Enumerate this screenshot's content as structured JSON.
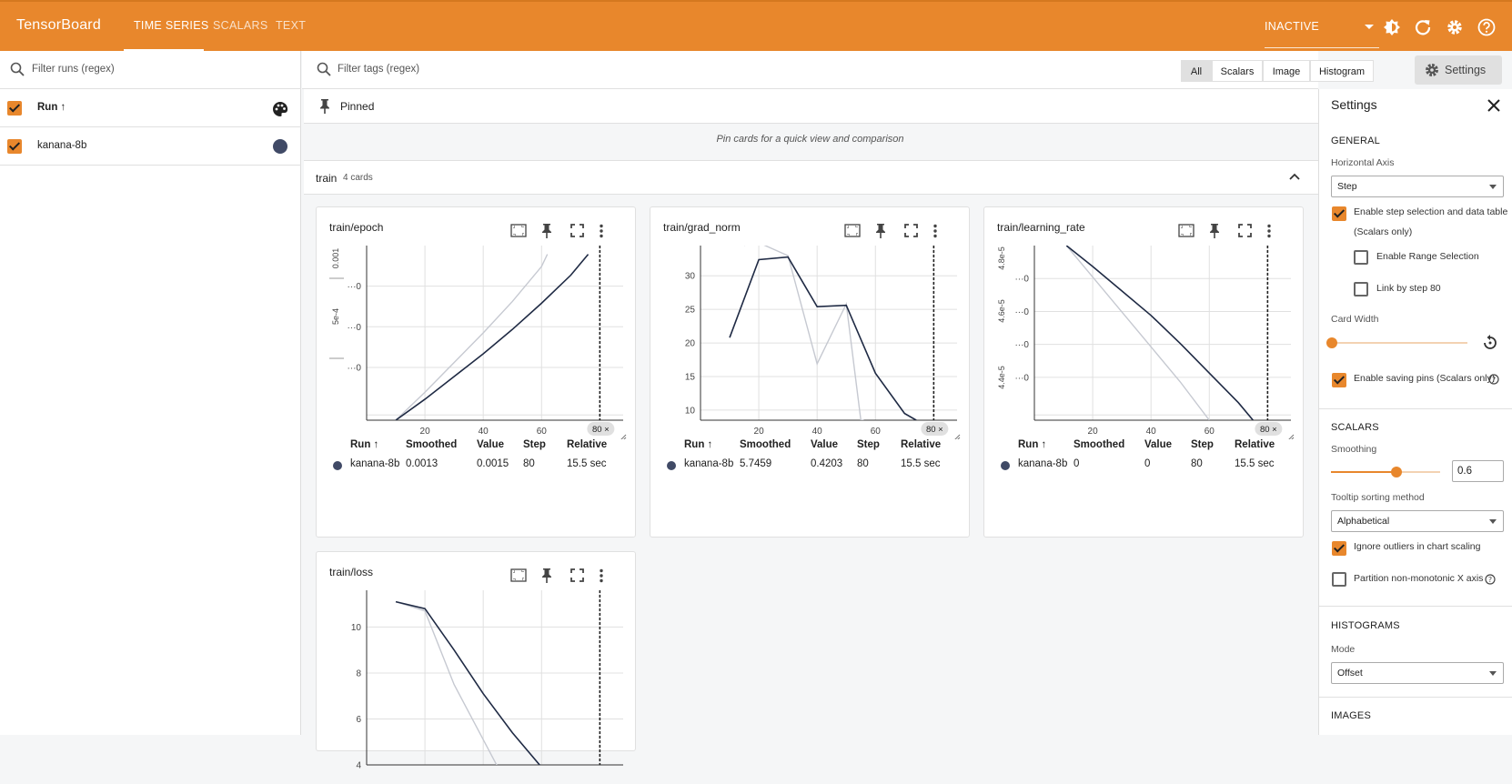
{
  "app": {
    "title": "TensorBoard"
  },
  "tabs": [
    {
      "label": "TIME SERIES"
    },
    {
      "label": "SCALARS"
    },
    {
      "label": "TEXT"
    }
  ],
  "header": {
    "status_select": "INACTIVE"
  },
  "icons": [
    "brightness-icon",
    "refresh-icon",
    "gear-icon",
    "help-icon",
    "search-icon",
    "palette-icon",
    "pin-icon",
    "close-icon",
    "chevron-up-icon",
    "fit-icon",
    "fullscreen-icon",
    "more-vert-icon",
    "reset-icon"
  ],
  "colors": {
    "accent": "#e8872c",
    "run": "#404a66",
    "smoothed_line": "#1f2a44",
    "raw_line": "#c6c9d1"
  },
  "runs_panel": {
    "filter_placeholder": "Filter runs (regex)",
    "header": "Run ↑",
    "runs": [
      {
        "name": "kanana-8b",
        "checked": true
      }
    ]
  },
  "filterbar": {
    "placeholder": "Filter tags (regex)",
    "types": [
      "All",
      "Scalars",
      "Image",
      "Histogram"
    ],
    "selected": "All",
    "settings_button": "Settings"
  },
  "pinned": {
    "label": "Pinned",
    "empty_message": "Pin cards for a quick view and comparison"
  },
  "group": {
    "name": "train",
    "count": "4 cards"
  },
  "table_headers": {
    "run": "Run ↑",
    "smoothed": "Smoothed",
    "value": "Value",
    "step": "Step",
    "relative": "Relative"
  },
  "step_marker": "80 ×",
  "cards": [
    {
      "title": "train/epoch",
      "row": {
        "run": "kanana-8b",
        "smoothed": "0.0013",
        "value": "0.0015",
        "step": "80",
        "relative": "15.5 sec"
      }
    },
    {
      "title": "train/grad_norm",
      "row": {
        "run": "kanana-8b",
        "smoothed": "5.7459",
        "value": "0.4203",
        "step": "80",
        "relative": "15.5 sec"
      }
    },
    {
      "title": "train/learning_rate",
      "row": {
        "run": "kanana-8b",
        "smoothed": "0",
        "value": "0",
        "step": "80",
        "relative": "15.5 sec"
      }
    },
    {
      "title": "train/loss"
    }
  ],
  "chart_data": [
    {
      "type": "line",
      "title": "train/epoch",
      "x_ticks": [
        "20",
        "40",
        "60"
      ],
      "y_ticks": [
        "···0",
        "···0",
        "···0"
      ],
      "y_side_labels": [
        "0.001",
        "5e-4"
      ],
      "xlim": [
        0,
        88
      ],
      "ylim": [
        0,
        1
      ],
      "series": [
        {
          "name": "kanana-8b",
          "kind": "smoothed",
          "x": [
            10,
            20,
            30,
            40,
            50,
            60,
            70,
            76
          ],
          "y": [
            0,
            0.12,
            0.25,
            0.38,
            0.52,
            0.67,
            0.83,
            0.95
          ]
        },
        {
          "name": "kanana-8b",
          "kind": "raw",
          "x": [
            10,
            20,
            30,
            40,
            50,
            60,
            62
          ],
          "y": [
            0,
            0.16,
            0.33,
            0.5,
            0.68,
            0.88,
            0.95
          ]
        }
      ]
    },
    {
      "type": "line",
      "title": "train/grad_norm",
      "x_ticks": [
        "20",
        "40",
        "60"
      ],
      "y_ticks": [
        "30",
        "25",
        "20",
        "15",
        "10"
      ],
      "xlim": [
        0,
        88
      ],
      "ylim": [
        8.5,
        34.5
      ],
      "series": [
        {
          "name": "kanana-8b",
          "kind": "smoothed",
          "x": [
            10,
            20,
            30,
            40,
            50,
            60,
            70,
            74
          ],
          "y": [
            20.8,
            32.4,
            32.8,
            25.4,
            25.6,
            15.5,
            9.5,
            8.5
          ]
        },
        {
          "name": "kanana-8b",
          "kind": "raw",
          "x": [
            15,
            17,
            30,
            40,
            50,
            55,
            56
          ],
          "y": [
            34.5,
            35.5,
            33.0,
            16.9,
            25.8,
            8.5,
            8.5
          ]
        }
      ]
    },
    {
      "type": "line",
      "title": "train/learning_rate",
      "x_ticks": [
        "20",
        "40",
        "60"
      ],
      "y_ticks": [
        "···0",
        "···0",
        "···0",
        "···0"
      ],
      "y_side_labels": [
        "4.8e-5",
        "4.6e-5",
        "4.4e-5"
      ],
      "xlim": [
        0,
        88
      ],
      "ylim": [
        0,
        1
      ],
      "series": [
        {
          "name": "kanana-8b",
          "kind": "smoothed",
          "x": [
            11,
            20,
            30,
            40,
            50,
            60,
            70,
            75
          ],
          "y": [
            1,
            0.88,
            0.74,
            0.6,
            0.44,
            0.27,
            0.1,
            0
          ]
        },
        {
          "name": "kanana-8b",
          "kind": "raw",
          "x": [
            11,
            20,
            30,
            40,
            50,
            60
          ],
          "y": [
            1,
            0.82,
            0.62,
            0.42,
            0.22,
            0
          ]
        }
      ]
    },
    {
      "type": "line",
      "title": "train/loss",
      "x_ticks": [],
      "y_ticks": [
        "10",
        "8",
        "6",
        "4"
      ],
      "xlim": [
        0,
        88
      ],
      "ylim": [
        4,
        11.6
      ],
      "series": [
        {
          "name": "kanana-8b",
          "kind": "smoothed",
          "x": [
            10,
            20,
            30,
            40,
            50,
            60
          ],
          "y": [
            11.1,
            10.8,
            9.0,
            7.1,
            5.4,
            3.9
          ]
        },
        {
          "name": "kanana-8b",
          "kind": "raw",
          "x": [
            10,
            20,
            30,
            40,
            45
          ],
          "y": [
            11.1,
            10.7,
            7.5,
            5.1,
            3.9
          ]
        }
      ]
    }
  ],
  "settings": {
    "title": "Settings",
    "general": {
      "heading": "GENERAL",
      "horizontal_axis_label": "Horizontal Axis",
      "horizontal_axis_value": "Step",
      "step_selection": "Enable step selection and data table",
      "step_selection_note": "(Scalars only)",
      "range_selection": "Enable Range Selection",
      "link_by_step": "Link by step 80",
      "card_width": "Card Width",
      "card_width_level": 0,
      "saving_pins": "Enable saving pins (Scalars only)"
    },
    "scalars": {
      "heading": "SCALARS",
      "smoothing_label": "Smoothing",
      "smoothing_value": "0.6",
      "tooltip_label": "Tooltip sorting method",
      "tooltip_value": "Alphabetical",
      "ignore_outliers": "Ignore outliers in chart scaling",
      "partition": "Partition non-monotonic X axis"
    },
    "histograms": {
      "heading": "HISTOGRAMS",
      "mode_label": "Mode",
      "mode_value": "Offset"
    },
    "images": {
      "heading": "IMAGES"
    }
  }
}
